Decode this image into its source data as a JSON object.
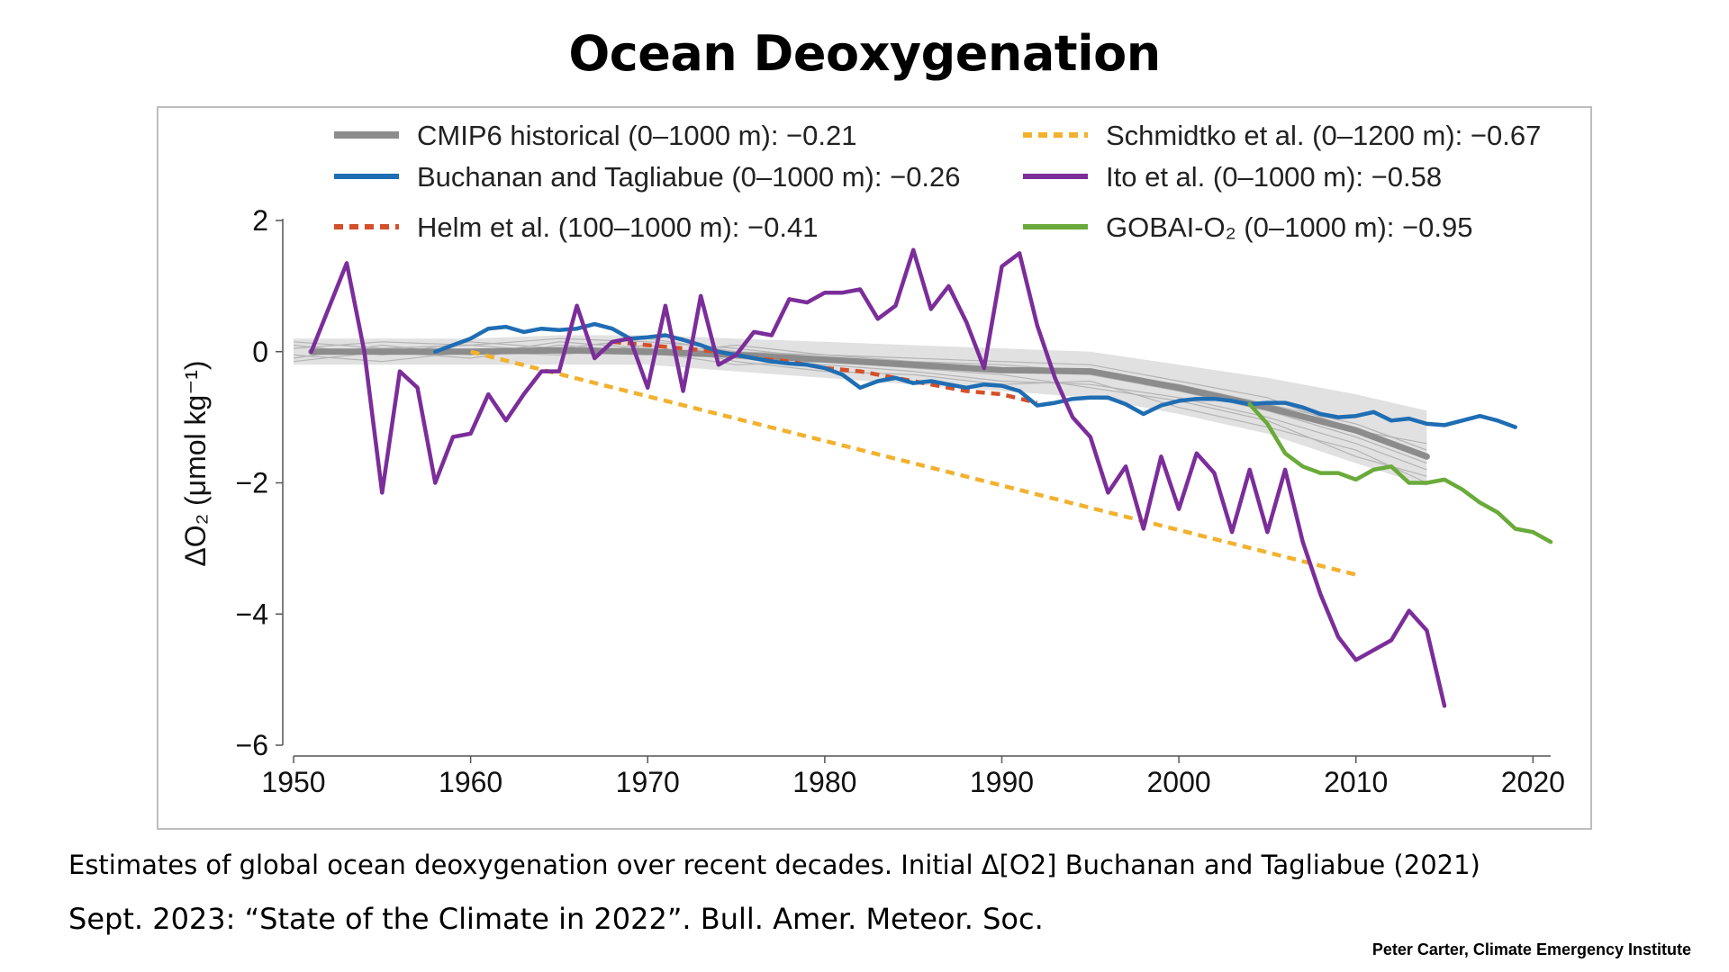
{
  "slide": {
    "title": "Ocean Deoxygenation",
    "caption_line1": "Estimates of global ocean deoxygenation over recent decades. Initial Δ[O2]  Buchanan and Tagliabue (2021)",
    "caption_line2": "Sept. 2023: “State of the Climate in 2022”. Bull. Amer. Meteor. Soc.",
    "credit": "Peter Carter, Climate Emergency Institute"
  },
  "chart_data": {
    "type": "line",
    "title": "",
    "xlabel": "",
    "ylabel": "ΔO₂ (μmol kg⁻¹)",
    "xlim": [
      1950,
      2021
    ],
    "ylim": [
      -6,
      2
    ],
    "xticks": [
      1950,
      1960,
      1970,
      1980,
      1990,
      2000,
      2010,
      2020
    ],
    "yticks": [
      2,
      0,
      -2,
      -4,
      -6
    ],
    "grid": false,
    "legend_position": "top",
    "band": {
      "color": "#c8c8c8",
      "x": [
        1950,
        1955,
        1960,
        1965,
        1970,
        1975,
        1980,
        1985,
        1990,
        1995,
        2000,
        2005,
        2010,
        2014
      ],
      "upper": [
        0.2,
        0.2,
        0.2,
        0.25,
        0.25,
        0.2,
        0.15,
        0.1,
        0.05,
        0.0,
        -0.2,
        -0.4,
        -0.65,
        -0.9
      ],
      "lower": [
        -0.2,
        -0.2,
        -0.2,
        -0.2,
        -0.2,
        -0.3,
        -0.4,
        -0.5,
        -0.6,
        -0.7,
        -0.95,
        -1.25,
        -1.7,
        -2.05
      ]
    },
    "thin_lines": {
      "color": "#b4b4b4",
      "x": [
        1950,
        1955,
        1960,
        1965,
        1970,
        1975,
        1980,
        1985,
        1990,
        1995,
        2000,
        2005,
        2010,
        2014
      ],
      "lines": [
        [
          0.1,
          -0.05,
          0.15,
          0.05,
          0.2,
          0.0,
          -0.05,
          -0.15,
          -0.2,
          -0.3,
          -0.5,
          -0.8,
          -1.1,
          -1.5
        ],
        [
          -0.1,
          0.1,
          -0.05,
          0.15,
          0.05,
          -0.1,
          -0.2,
          -0.3,
          -0.45,
          -0.5,
          -0.7,
          -1.0,
          -1.4,
          -1.8
        ],
        [
          0.15,
          0.05,
          0.1,
          0.2,
          0.15,
          0.05,
          -0.1,
          -0.2,
          -0.3,
          -0.35,
          -0.6,
          -0.9,
          -1.3,
          -1.7
        ],
        [
          -0.05,
          -0.15,
          0.0,
          -0.05,
          0.1,
          -0.15,
          -0.3,
          -0.35,
          -0.5,
          -0.45,
          -0.85,
          -1.15,
          -1.5,
          -2.0
        ],
        [
          0.05,
          0.15,
          0.1,
          0.0,
          -0.05,
          0.1,
          -0.05,
          -0.1,
          -0.15,
          -0.2,
          -0.45,
          -0.7,
          -1.2,
          -1.4
        ],
        [
          -0.15,
          0.0,
          -0.1,
          0.1,
          0.0,
          -0.2,
          -0.15,
          -0.25,
          -0.35,
          -0.55,
          -0.75,
          -1.05,
          -1.6,
          -1.9
        ]
      ]
    },
    "series": [
      {
        "name": "CMIP6 historical (0–1000 m): −0.21",
        "color": "#8c8c8c",
        "dash": "solid",
        "x": [
          1951,
          1955,
          1960,
          1965,
          1970,
          1975,
          1980,
          1985,
          1990,
          1995,
          2000,
          2005,
          2010,
          2014
        ],
        "y": [
          0.0,
          0.0,
          0.0,
          0.02,
          0.0,
          -0.05,
          -0.12,
          -0.2,
          -0.28,
          -0.3,
          -0.55,
          -0.85,
          -1.2,
          -1.6
        ]
      },
      {
        "name": "Buchanan and Tagliabue (0–1000 m): −0.26",
        "color": "#1f6db3",
        "dash": "solid",
        "x": [
          1958,
          1959,
          1960,
          1961,
          1962,
          1963,
          1964,
          1965,
          1966,
          1967,
          1968,
          1969,
          1970,
          1971,
          1972,
          1973,
          1974,
          1975,
          1976,
          1977,
          1978,
          1979,
          1980,
          1981,
          1982,
          1983,
          1984,
          1985,
          1986,
          1987,
          1988,
          1989,
          1990,
          1991,
          1992,
          1993,
          1994,
          1995,
          1996,
          1997,
          1998,
          1999,
          2000,
          2001,
          2002,
          2003,
          2004,
          2005,
          2006,
          2007,
          2008,
          2009,
          2010,
          2011,
          2012,
          2013,
          2014,
          2015,
          2016,
          2017,
          2018,
          2019
        ],
        "y": [
          0.0,
          0.1,
          0.2,
          0.35,
          0.38,
          0.3,
          0.35,
          0.33,
          0.35,
          0.42,
          0.35,
          0.2,
          0.22,
          0.25,
          0.18,
          0.1,
          0.0,
          -0.05,
          -0.1,
          -0.15,
          -0.18,
          -0.2,
          -0.25,
          -0.35,
          -0.55,
          -0.45,
          -0.4,
          -0.48,
          -0.45,
          -0.5,
          -0.55,
          -0.5,
          -0.52,
          -0.6,
          -0.82,
          -0.78,
          -0.72,
          -0.7,
          -0.7,
          -0.8,
          -0.95,
          -0.82,
          -0.75,
          -0.72,
          -0.72,
          -0.75,
          -0.8,
          -0.78,
          -0.78,
          -0.85,
          -0.95,
          -1.0,
          -0.98,
          -0.92,
          -1.05,
          -1.02,
          -1.1,
          -1.12,
          -1.05,
          -0.98,
          -1.05,
          -1.15
        ]
      },
      {
        "name": "Helm et al. (100–1000 m): −0.41",
        "color": "#d4502a",
        "dash": "dotted",
        "x": [
          1968,
          1970,
          1972,
          1974,
          1976,
          1978,
          1980,
          1982,
          1984,
          1986,
          1988,
          1990,
          1992
        ],
        "y": [
          0.15,
          0.1,
          0.05,
          0.0,
          -0.1,
          -0.15,
          -0.25,
          -0.3,
          -0.4,
          -0.5,
          -0.6,
          -0.65,
          -0.78
        ]
      },
      {
        "name": "Schmidtko et al. (0–1200 m): −0.67",
        "color": "#f2b12e",
        "dash": "dotted",
        "x": [
          1960,
          2010
        ],
        "y": [
          0.0,
          -3.4
        ]
      },
      {
        "name": "Ito et al. (0–1000 m): −0.58",
        "color": "#7b2d9a",
        "dash": "solid",
        "x": [
          1951,
          1953,
          1954,
          1955,
          1956,
          1957,
          1958,
          1959,
          1960,
          1961,
          1962,
          1963,
          1964,
          1965,
          1966,
          1967,
          1968,
          1969,
          1970,
          1971,
          1972,
          1973,
          1974,
          1975,
          1976,
          1977,
          1978,
          1979,
          1980,
          1981,
          1982,
          1983,
          1984,
          1985,
          1986,
          1987,
          1988,
          1989,
          1990,
          1991,
          1992,
          1993,
          1994,
          1995,
          1996,
          1997,
          1998,
          1999,
          2000,
          2001,
          2002,
          2003,
          2004,
          2005,
          2006,
          2007,
          2008,
          2009,
          2010,
          2011,
          2012,
          2013,
          2014,
          2015
        ],
        "y": [
          0.0,
          1.35,
          0.0,
          -2.15,
          -0.3,
          -0.55,
          -2.0,
          -1.3,
          -1.25,
          -0.65,
          -1.05,
          -0.65,
          -0.3,
          -0.3,
          0.7,
          -0.1,
          0.15,
          0.2,
          -0.55,
          0.7,
          -0.6,
          0.85,
          -0.2,
          -0.05,
          0.3,
          0.25,
          0.8,
          0.75,
          0.9,
          0.9,
          0.95,
          0.5,
          0.7,
          1.55,
          0.65,
          1.0,
          0.45,
          -0.25,
          1.3,
          1.5,
          0.4,
          -0.4,
          -1.0,
          -1.3,
          -2.15,
          -1.75,
          -2.7,
          -1.6,
          -2.4,
          -1.55,
          -1.85,
          -2.75,
          -1.8,
          -2.75,
          -1.8,
          -2.9,
          -3.7,
          -4.35,
          -4.7,
          -4.55,
          -4.4,
          -3.95,
          -4.25,
          -5.4
        ]
      },
      {
        "name": "GOBAI-O₂ (0–1000 m): −0.95",
        "color": "#6aaa3a",
        "dash": "solid",
        "x": [
          2004,
          2005,
          2006,
          2007,
          2008,
          2009,
          2010,
          2011,
          2012,
          2013,
          2014,
          2015,
          2016,
          2017,
          2018,
          2019,
          2020,
          2021
        ],
        "y": [
          -0.8,
          -1.1,
          -1.55,
          -1.75,
          -1.85,
          -1.85,
          -1.95,
          -1.8,
          -1.75,
          -2.0,
          -2.0,
          -1.95,
          -2.1,
          -2.3,
          -2.45,
          -2.7,
          -2.75,
          -2.9
        ]
      }
    ]
  }
}
